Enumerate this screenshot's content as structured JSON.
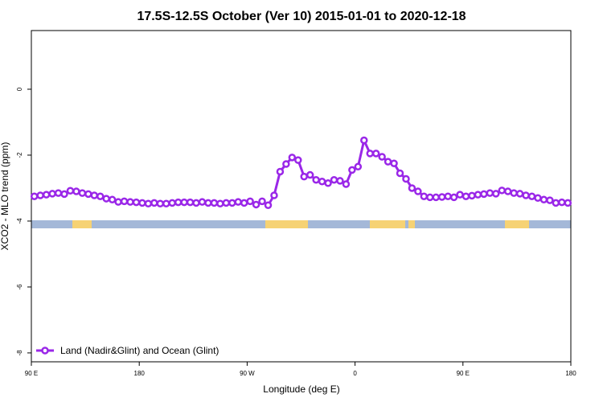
{
  "chart_data": {
    "type": "line",
    "title": "17.5S-12.5S October (Ver 10)   2015-01-01 to 2020-12-18",
    "x_label": "Longitude (deg E)",
    "y_label": "XCO2 - MLO trend (ppm)",
    "x": [
      92.5,
      97.5,
      102.5,
      107.5,
      112.5,
      117.5,
      122.5,
      127.5,
      132.5,
      137.5,
      142.5,
      147.5,
      152.5,
      157.5,
      162.5,
      167.5,
      172.5,
      177.5,
      182.5,
      187.5,
      192.5,
      197.5,
      202.5,
      207.5,
      212.5,
      217.5,
      222.5,
      227.5,
      232.5,
      237.5,
      242.5,
      247.5,
      252.5,
      257.5,
      262.5,
      267.5,
      272.5,
      277.5,
      282.5,
      287.5,
      292.5,
      297.5,
      302.5,
      307.5,
      312.5,
      317.5,
      322.5,
      327.5,
      332.5,
      337.5,
      342.5,
      347.5,
      352.5,
      357.5,
      362.5,
      367.5,
      372.5,
      377.5,
      382.5,
      387.5,
      392.5,
      397.5,
      402.5,
      407.5,
      412.5,
      417.5,
      422.5,
      427.5,
      432.5,
      437.5,
      442.5,
      447.5,
      452.5,
      457.5,
      462.5,
      467.5,
      472.5,
      477.5,
      482.5,
      487.5,
      492.5,
      497.5,
      502.5,
      507.5,
      512.5,
      517.5,
      522.5,
      527.5,
      532.5,
      537.5
    ],
    "series": [
      {
        "name": "Land (Nadir&Glint) and Ocean (Glint)",
        "color": "#9a27e8",
        "values": [
          -3.25,
          -3.22,
          -3.2,
          -3.17,
          -3.15,
          -3.18,
          -3.08,
          -3.1,
          -3.15,
          -3.18,
          -3.22,
          -3.25,
          -3.32,
          -3.35,
          -3.42,
          -3.4,
          -3.42,
          -3.43,
          -3.45,
          -3.47,
          -3.45,
          -3.47,
          -3.47,
          -3.45,
          -3.43,
          -3.43,
          -3.43,
          -3.45,
          -3.42,
          -3.45,
          -3.45,
          -3.47,
          -3.45,
          -3.45,
          -3.42,
          -3.45,
          -3.4,
          -3.5,
          -3.4,
          -3.52,
          -3.22,
          -2.5,
          -2.27,
          -2.07,
          -2.15,
          -2.65,
          -2.6,
          -2.75,
          -2.8,
          -2.85,
          -2.75,
          -2.78,
          -2.88,
          -2.45,
          -2.35,
          -1.55,
          -1.95,
          -1.95,
          -2.05,
          -2.2,
          -2.25,
          -2.55,
          -2.72,
          -3.0,
          -3.1,
          -3.25,
          -3.28,
          -3.28,
          -3.27,
          -3.25,
          -3.28,
          -3.2,
          -3.25,
          -3.23,
          -3.2,
          -3.18,
          -3.15,
          -3.17,
          -3.07,
          -3.1,
          -3.15,
          -3.17,
          -3.22,
          -3.25,
          -3.3,
          -3.35,
          -3.37,
          -3.45,
          -3.43,
          -3.45
        ]
      }
    ],
    "xlim": [
      90,
      540
    ],
    "xticks": [
      {
        "value": 90,
        "label": "90 E"
      },
      180,
      {
        "value": 270,
        "label": "90 W"
      },
      {
        "value": 360,
        "label": "0"
      },
      {
        "value": 450,
        "label": "90 E"
      },
      {
        "value": 540,
        "label": "180"
      }
    ],
    "ylim": [
      -8.27,
      1.78
    ],
    "yticks": [
      0,
      -2,
      -4,
      -6,
      -8
    ],
    "legend": "bottom-left"
  }
}
